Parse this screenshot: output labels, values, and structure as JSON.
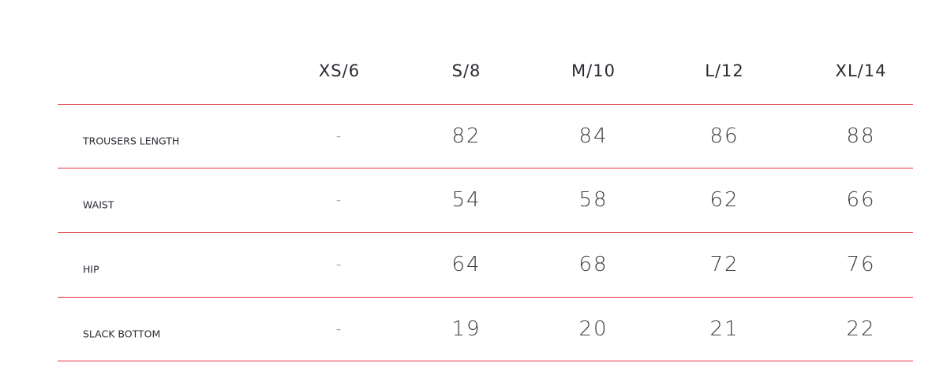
{
  "columns": [
    "XS/6",
    "S/8",
    "M/10",
    "L/12",
    "XL/14"
  ],
  "rows": [
    {
      "label": "TROUSERS LENGTH",
      "values": [
        "-",
        "82",
        "84",
        "86",
        "88"
      ]
    },
    {
      "label": "WAIST",
      "values": [
        "-",
        "54",
        "58",
        "62",
        "66"
      ]
    },
    {
      "label": "HIP",
      "values": [
        "-",
        "64",
        "68",
        "72",
        "76"
      ]
    },
    {
      "label": "SLACK BOTTOM",
      "values": [
        "-",
        "19",
        "20",
        "21",
        "22"
      ]
    }
  ],
  "colors": {
    "divider": "#e0323c",
    "text": "#2a2c33"
  }
}
